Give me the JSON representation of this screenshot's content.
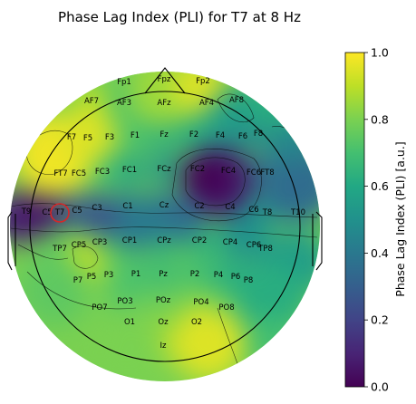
{
  "chart_data": {
    "type": "heatmap",
    "subtype": "eeg-topomap",
    "title": "Phase Lag Index (PLI) for T7 at 8 Hz",
    "colormap": "viridis",
    "colorbar": {
      "label": "Phase Lag Index (PLI) [a.u.]",
      "range": [
        0.0,
        1.0
      ],
      "ticks": [
        "0.0",
        "0.2",
        "0.4",
        "0.6",
        "0.8",
        "1.0"
      ]
    },
    "seed_channel": "T7",
    "electrodes": [
      {
        "name": "Fp1",
        "pli": 0.75
      },
      {
        "name": "Fpz",
        "pli": 0.85
      },
      {
        "name": "Fp2",
        "pli": 0.95
      },
      {
        "name": "AF7",
        "pli": 0.9
      },
      {
        "name": "AF3",
        "pli": 0.7
      },
      {
        "name": "AFz",
        "pli": 0.8
      },
      {
        "name": "AF4",
        "pli": 0.65
      },
      {
        "name": "AF8",
        "pli": 0.55
      },
      {
        "name": "F7",
        "pli": 0.97
      },
      {
        "name": "F5",
        "pli": 0.93
      },
      {
        "name": "F3",
        "pli": 0.85
      },
      {
        "name": "F1",
        "pli": 0.7
      },
      {
        "name": "Fz",
        "pli": 0.62
      },
      {
        "name": "F2",
        "pli": 0.6
      },
      {
        "name": "F4",
        "pli": 0.55
      },
      {
        "name": "F6",
        "pli": 0.5
      },
      {
        "name": "F8",
        "pli": 0.45
      },
      {
        "name": "FT7",
        "pli": 0.85
      },
      {
        "name": "FC5",
        "pli": 0.82
      },
      {
        "name": "FC3",
        "pli": 0.7
      },
      {
        "name": "FC1",
        "pli": 0.58
      },
      {
        "name": "FCz",
        "pli": 0.5
      },
      {
        "name": "FC2",
        "pli": 0.22
      },
      {
        "name": "FC4",
        "pli": 0.15
      },
      {
        "name": "FC6",
        "pli": 0.35
      },
      {
        "name": "FT8",
        "pli": 0.4
      },
      {
        "name": "T9",
        "pli": 0.2
      },
      {
        "name": "C5",
        "pli": 0.15
      },
      {
        "name": "T7",
        "pli": 0.12
      },
      {
        "name": "C5b",
        "pli": 0.3
      },
      {
        "name": "C3",
        "pli": 0.4
      },
      {
        "name": "C1",
        "pli": 0.45
      },
      {
        "name": "Cz",
        "pli": 0.42
      },
      {
        "name": "C2",
        "pli": 0.3
      },
      {
        "name": "C4",
        "pli": 0.3
      },
      {
        "name": "C6",
        "pli": 0.45
      },
      {
        "name": "T8",
        "pli": 0.52
      },
      {
        "name": "T10",
        "pli": 0.55
      },
      {
        "name": "TP7",
        "pli": 0.72
      },
      {
        "name": "CP5",
        "pli": 0.75
      },
      {
        "name": "CP3",
        "pli": 0.72
      },
      {
        "name": "CP1",
        "pli": 0.65
      },
      {
        "name": "CPz",
        "pli": 0.62
      },
      {
        "name": "CP2",
        "pli": 0.62
      },
      {
        "name": "CP4",
        "pli": 0.6
      },
      {
        "name": "CP6",
        "pli": 0.55
      },
      {
        "name": "TP8",
        "pli": 0.55
      },
      {
        "name": "P7",
        "pli": 0.78
      },
      {
        "name": "P5",
        "pli": 0.88
      },
      {
        "name": "P3",
        "pli": 0.75
      },
      {
        "name": "P1",
        "pli": 0.7
      },
      {
        "name": "Pz",
        "pli": 0.68
      },
      {
        "name": "P2",
        "pli": 0.7
      },
      {
        "name": "P4",
        "pli": 0.65
      },
      {
        "name": "P6",
        "pli": 0.62
      },
      {
        "name": "P8",
        "pli": 0.6
      },
      {
        "name": "PO7",
        "pli": 0.8
      },
      {
        "name": "PO3",
        "pli": 0.72
      },
      {
        "name": "POz",
        "pli": 0.75
      },
      {
        "name": "PO4",
        "pli": 0.8
      },
      {
        "name": "PO8",
        "pli": 0.75
      },
      {
        "name": "O1",
        "pli": 0.8
      },
      {
        "name": "Oz",
        "pli": 0.82
      },
      {
        "name": "O2",
        "pli": 0.9
      },
      {
        "name": "Iz",
        "pli": 0.88
      }
    ]
  }
}
